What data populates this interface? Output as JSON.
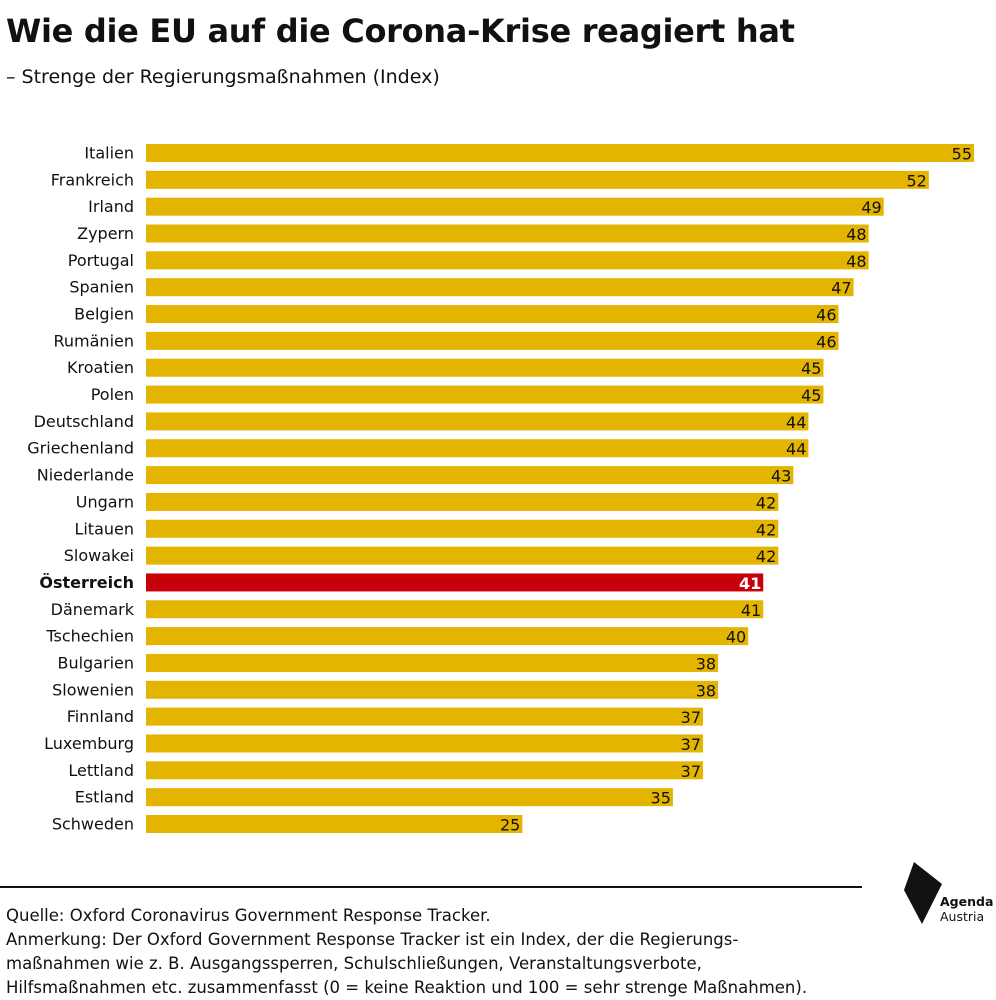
{
  "header": {
    "title": "Wie die EU auf die Corona-Krise reagiert hat",
    "subtitle": "– Strenge der Regierungsmaßnahmen (Index)"
  },
  "colors": {
    "bar": "#E3B400",
    "highlight": "#C8000A",
    "text": "#111111"
  },
  "chart_data": {
    "type": "bar",
    "orientation": "horizontal",
    "title": "Wie die EU auf die Corona-Krise reagiert hat",
    "subtitle": "– Strenge der Regierungsmaßnahmen (Index)",
    "categories": [
      "Italien",
      "Frankreich",
      "Irland",
      "Zypern",
      "Portugal",
      "Spanien",
      "Belgien",
      "Rumänien",
      "Kroatien",
      "Polen",
      "Deutschland",
      "Griechenland",
      "Niederlande",
      "Ungarn",
      "Litauen",
      "Slowakei",
      "Österreich",
      "Dänemark",
      "Tschechien",
      "Bulgarien",
      "Slowenien",
      "Finnland",
      "Luxemburg",
      "Lettland",
      "Estland",
      "Schweden"
    ],
    "values": [
      55,
      52,
      49,
      48,
      48,
      47,
      46,
      46,
      45,
      45,
      44,
      44,
      43,
      42,
      42,
      42,
      41,
      41,
      40,
      38,
      38,
      37,
      37,
      37,
      35,
      25
    ],
    "highlight": "Österreich",
    "xlim": [
      0,
      55
    ],
    "grid": false,
    "legend": "none",
    "data_labels": true
  },
  "footer": {
    "source": "Quelle: Oxford Coronavirus Government Response Tracker.",
    "note_lines": [
      "Anmerkung: Der Oxford Government Response Tracker ist ein Index, der die Regierungs-",
      "maßnahmen wie z. B. Ausgangssperren, Schulschließungen, Veranstaltungsverbote,",
      "Hilfsmaßnahmen etc. zusammenfasst (0 = keine Reaktion und 100 = sehr strenge Maßnahmen)."
    ]
  },
  "logo": {
    "line1": "Agenda",
    "line2": "Austria",
    "icon": "agenda-austria-logo-icon"
  }
}
